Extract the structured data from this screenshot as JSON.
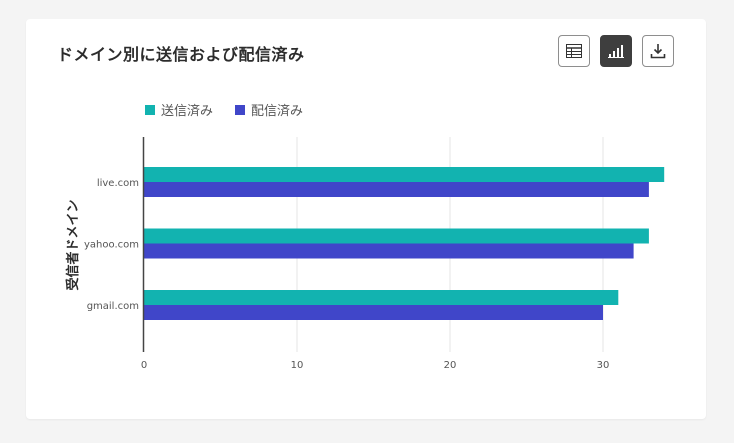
{
  "chart_data": {
    "type": "bar",
    "orientation": "horizontal",
    "title": "ドメイン別に送信および配信済み",
    "xlabel": "",
    "ylabel": "受信者ドメイン",
    "categories": [
      "live.com",
      "yahoo.com",
      "gmail.com"
    ],
    "series": [
      {
        "name": "送信済み",
        "color": "#12b3b0",
        "values": [
          34,
          33,
          31
        ]
      },
      {
        "name": "配信済み",
        "color": "#4046c9",
        "values": [
          33,
          32,
          30
        ]
      }
    ],
    "xlim": [
      0,
      35
    ],
    "xticks": [
      0,
      10,
      20,
      30
    ],
    "grid": "vertical",
    "legend": "top-left"
  },
  "toolbar": {
    "table_icon": "table-icon",
    "chart_icon": "bar-chart-icon",
    "download_icon": "download-icon"
  }
}
